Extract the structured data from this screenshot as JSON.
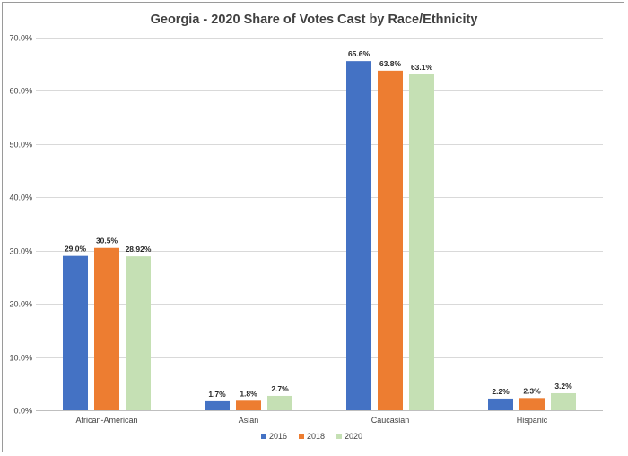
{
  "chart_data": {
    "type": "bar",
    "title": "Georgia - 2020 Share of Votes Cast by Race/Ethnicity",
    "xlabel": "",
    "ylabel": "",
    "ylim": [
      0,
      70
    ],
    "yticks": [
      "0.0%",
      "10.0%",
      "20.0%",
      "30.0%",
      "40.0%",
      "50.0%",
      "60.0%",
      "70.0%"
    ],
    "ytick_values": [
      0,
      10,
      20,
      30,
      40,
      50,
      60,
      70
    ],
    "grid": true,
    "legend_position": "bottom",
    "categories": [
      "African-American",
      "Asian",
      "Caucasian",
      "Hispanic"
    ],
    "series": [
      {
        "name": "2016",
        "color": "#4472c4",
        "values": [
          29.0,
          1.7,
          65.6,
          2.2
        ],
        "labels": [
          "29.0%",
          "1.7%",
          "65.6%",
          "2.2%"
        ]
      },
      {
        "name": "2018",
        "color": "#ed7d31",
        "values": [
          30.5,
          1.8,
          63.8,
          2.3
        ],
        "labels": [
          "30.5%",
          "1.8%",
          "63.8%",
          "2.3%"
        ]
      },
      {
        "name": "2020",
        "color": "#c5e0b4",
        "values": [
          28.92,
          2.7,
          63.1,
          3.2
        ],
        "labels": [
          "28.92%",
          "2.7%",
          "63.1%",
          "3.2%"
        ]
      }
    ]
  }
}
